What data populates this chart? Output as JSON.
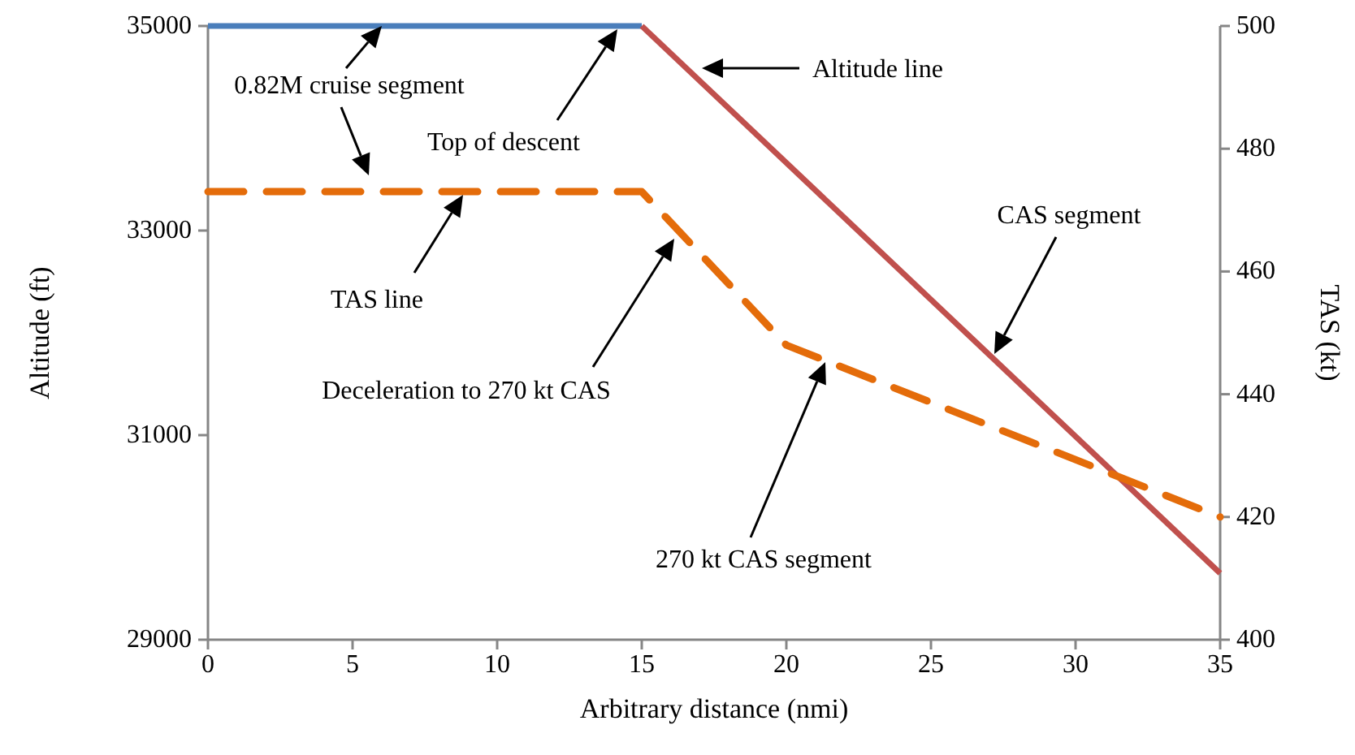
{
  "chart_data": {
    "type": "line",
    "xlabel": "Arbitrary distance (nmi)",
    "ylabel": "Altitude (ft)",
    "y2label": "TAS (kt)",
    "xlim": [
      0,
      35
    ],
    "xticks": [
      0,
      5,
      10,
      15,
      20,
      25,
      30,
      35
    ],
    "ylim": [
      29000,
      35000
    ],
    "yticks": [
      29000,
      31000,
      33000,
      35000
    ],
    "y2lim": [
      400,
      500
    ],
    "y2ticks": [
      400,
      420,
      440,
      460,
      480,
      500
    ],
    "series": [
      {
        "color": "#4a7ebb",
        "x": [
          0,
          15
        ],
        "values": [
          35000,
          35000
        ]
      },
      {
        "color": "#c0504d",
        "x": [
          15,
          35
        ],
        "values": [
          35000,
          29650
        ]
      },
      {
        "color": "#e46c0a",
        "axis": "y2",
        "line_style": "dashed",
        "x": [
          0,
          15,
          20,
          35
        ],
        "values": [
          473,
          473,
          448,
          420
        ]
      }
    ],
    "annotations": [
      "0.82M cruise segment",
      "Top of descent",
      "Altitude line",
      "TAS line",
      "Deceleration to 270 kt CAS",
      "CAS segment",
      "270 kt CAS segment"
    ],
    "grid": false
  }
}
